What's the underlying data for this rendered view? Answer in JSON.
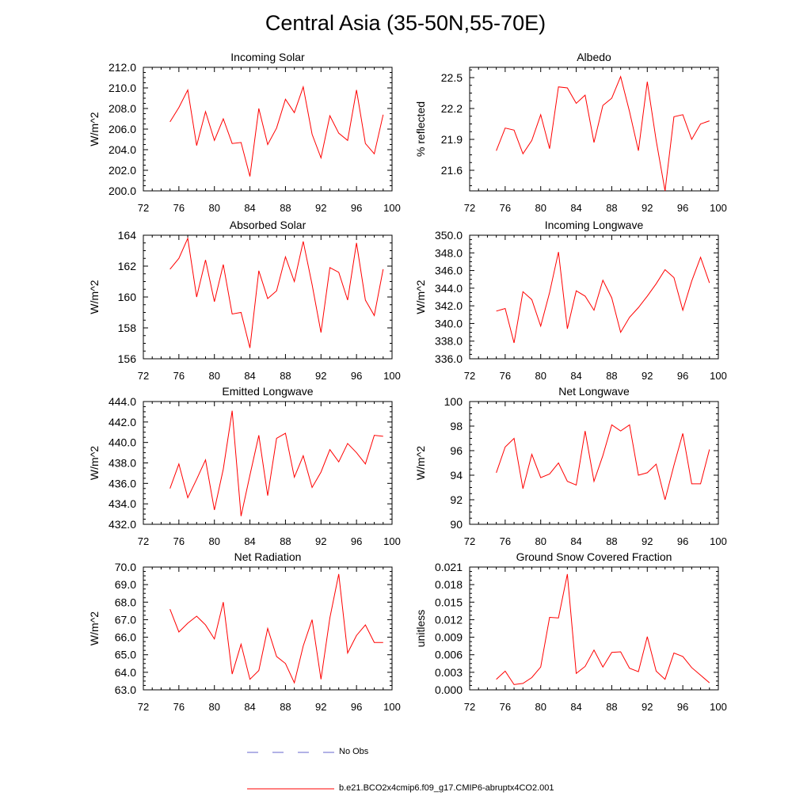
{
  "page": {
    "title": "Central Asia (35-50N,55-70E)"
  },
  "legend": {
    "obs": {
      "label": "No Obs",
      "color": "#6666cc"
    },
    "model": {
      "label": "b.e21.BCO2x4cmip6.f09_g17.CMIP6-abruptx4CO2.001",
      "color": "#ff0000"
    }
  },
  "chart_data": [
    {
      "type": "line",
      "title": "Incoming Solar",
      "ylabel": "W/m^2",
      "xlim": [
        72,
        100
      ],
      "xticks": [
        72,
        76,
        80,
        84,
        88,
        92,
        96,
        100
      ],
      "xtick_labels": [
        "72",
        "76",
        "80",
        "84",
        "88",
        "92",
        "96",
        "100"
      ],
      "ylim": [
        200,
        212
      ],
      "yticks": [
        200,
        202,
        204,
        206,
        208,
        210,
        212
      ],
      "ytick_labels": [
        "200.0",
        "202.0",
        "204.0",
        "206.0",
        "208.0",
        "210.0",
        "212.0"
      ],
      "series": [
        {
          "color": "#ff0000",
          "x": [
            75,
            76,
            77,
            78,
            79,
            80,
            81,
            82,
            83,
            84,
            85,
            86,
            87,
            88,
            89,
            90,
            91,
            92,
            93,
            94,
            95,
            96,
            97,
            98,
            99
          ],
          "y": [
            206.7,
            208.1,
            209.8,
            204.4,
            207.7,
            204.9,
            207.0,
            204.6,
            204.7,
            201.4,
            208.0,
            204.5,
            206.1,
            208.9,
            207.6,
            210.1,
            205.5,
            203.2,
            207.3,
            205.6,
            204.9,
            209.8,
            204.6,
            203.6,
            207.4
          ]
        }
      ]
    },
    {
      "type": "line",
      "title": "Albedo",
      "ylabel": "% reflected",
      "xlim": [
        72,
        100
      ],
      "xticks": [
        72,
        76,
        80,
        84,
        88,
        92,
        96,
        100
      ],
      "xtick_labels": [
        "72",
        "76",
        "80",
        "84",
        "88",
        "92",
        "96",
        "100"
      ],
      "ylim": [
        21.4,
        22.6
      ],
      "yticks": [
        21.6,
        21.9,
        22.2,
        22.5
      ],
      "ytick_labels": [
        "21.6",
        "21.9",
        "22.2",
        "22.5"
      ],
      "series": [
        {
          "color": "#ff0000",
          "x": [
            75,
            76,
            77,
            78,
            79,
            80,
            81,
            82,
            83,
            84,
            85,
            86,
            87,
            88,
            89,
            90,
            91,
            92,
            93,
            94,
            95,
            96,
            97,
            98,
            99
          ],
          "y": [
            21.79,
            22.01,
            21.99,
            21.76,
            21.89,
            22.14,
            21.81,
            22.41,
            22.4,
            22.25,
            22.33,
            21.87,
            22.23,
            22.3,
            22.51,
            22.17,
            21.79,
            22.46,
            21.89,
            21.4,
            22.12,
            22.14,
            21.9,
            22.05,
            22.08
          ]
        }
      ]
    },
    {
      "type": "line",
      "title": "Absorbed Solar",
      "ylabel": "W/m^2",
      "xlim": [
        72,
        100
      ],
      "xticks": [
        72,
        76,
        80,
        84,
        88,
        92,
        96,
        100
      ],
      "xtick_labels": [
        "72",
        "76",
        "80",
        "84",
        "88",
        "92",
        "96",
        "100"
      ],
      "ylim": [
        156,
        164
      ],
      "yticks": [
        156,
        158,
        160,
        162,
        164
      ],
      "ytick_labels": [
        "156",
        "158",
        "160",
        "162",
        "164"
      ],
      "series": [
        {
          "color": "#ff0000",
          "x": [
            75,
            76,
            77,
            78,
            79,
            80,
            81,
            82,
            83,
            84,
            85,
            86,
            87,
            88,
            89,
            90,
            91,
            92,
            93,
            94,
            95,
            96,
            97,
            98,
            99
          ],
          "y": [
            161.8,
            162.5,
            163.8,
            160.0,
            162.4,
            159.7,
            162.1,
            158.9,
            159.0,
            156.7,
            161.7,
            159.9,
            160.4,
            162.6,
            161.0,
            163.6,
            160.8,
            157.7,
            161.9,
            161.6,
            159.8,
            163.5,
            159.8,
            158.8,
            161.8
          ]
        }
      ]
    },
    {
      "type": "line",
      "title": "Incoming Longwave",
      "ylabel": "W/m^2",
      "xlim": [
        72,
        100
      ],
      "xticks": [
        72,
        76,
        80,
        84,
        88,
        92,
        96,
        100
      ],
      "xtick_labels": [
        "72",
        "76",
        "80",
        "84",
        "88",
        "92",
        "96",
        "100"
      ],
      "ylim": [
        336,
        350
      ],
      "yticks": [
        336,
        338,
        340,
        342,
        344,
        346,
        348,
        350
      ],
      "ytick_labels": [
        "336.0",
        "338.0",
        "340.0",
        "342.0",
        "344.0",
        "346.0",
        "348.0",
        "350.0"
      ],
      "series": [
        {
          "color": "#ff0000",
          "x": [
            75,
            76,
            77,
            78,
            79,
            80,
            81,
            82,
            83,
            84,
            85,
            86,
            87,
            88,
            89,
            90,
            91,
            92,
            93,
            94,
            95,
            96,
            97,
            98,
            99
          ],
          "y": [
            341.4,
            341.7,
            337.8,
            343.6,
            342.7,
            339.7,
            343.5,
            348.1,
            339.4,
            343.7,
            343.1,
            341.5,
            344.9,
            342.9,
            339.0,
            340.7,
            341.8,
            343.1,
            344.5,
            346.1,
            345.2,
            341.5,
            344.8,
            347.5,
            344.6
          ]
        }
      ]
    },
    {
      "type": "line",
      "title": "Emitted Longwave",
      "ylabel": "W/m^2",
      "xlim": [
        72,
        100
      ],
      "xticks": [
        72,
        76,
        80,
        84,
        88,
        92,
        96,
        100
      ],
      "xtick_labels": [
        "72",
        "76",
        "80",
        "84",
        "88",
        "92",
        "96",
        "100"
      ],
      "ylim": [
        432,
        444
      ],
      "yticks": [
        432,
        434,
        436,
        438,
        440,
        442,
        444
      ],
      "ytick_labels": [
        "432.0",
        "434.0",
        "436.0",
        "438.0",
        "440.0",
        "442.0",
        "444.0"
      ],
      "series": [
        {
          "color": "#ff0000",
          "x": [
            75,
            76,
            77,
            78,
            79,
            80,
            81,
            82,
            83,
            84,
            85,
            86,
            87,
            88,
            89,
            90,
            91,
            92,
            93,
            94,
            95,
            96,
            97,
            98,
            99
          ],
          "y": [
            435.5,
            437.9,
            434.6,
            436.4,
            438.3,
            433.4,
            437.4,
            443.1,
            432.8,
            436.8,
            440.7,
            434.8,
            440.4,
            440.9,
            436.6,
            438.7,
            435.6,
            437.1,
            439.3,
            438.1,
            439.9,
            439.0,
            437.9,
            440.7,
            440.6
          ]
        }
      ]
    },
    {
      "type": "line",
      "title": "Net Longwave",
      "ylabel": "W/m^2",
      "xlim": [
        72,
        100
      ],
      "xticks": [
        72,
        76,
        80,
        84,
        88,
        92,
        96,
        100
      ],
      "xtick_labels": [
        "72",
        "76",
        "80",
        "84",
        "88",
        "92",
        "96",
        "100"
      ],
      "ylim": [
        90,
        100
      ],
      "yticks": [
        90,
        92,
        94,
        96,
        98,
        100
      ],
      "ytick_labels": [
        "90",
        "92",
        "94",
        "96",
        "98",
        "100"
      ],
      "series": [
        {
          "color": "#ff0000",
          "x": [
            75,
            76,
            77,
            78,
            79,
            80,
            81,
            82,
            83,
            84,
            85,
            86,
            87,
            88,
            89,
            90,
            91,
            92,
            93,
            94,
            95,
            96,
            97,
            98,
            99
          ],
          "y": [
            94.2,
            96.3,
            97.0,
            92.9,
            95.7,
            93.8,
            94.1,
            95.0,
            93.5,
            93.2,
            97.6,
            93.5,
            95.6,
            98.1,
            97.6,
            98.1,
            94.0,
            94.2,
            94.9,
            92.0,
            94.8,
            97.4,
            93.3,
            93.3,
            96.1
          ]
        }
      ]
    },
    {
      "type": "line",
      "title": "Net Radiation",
      "ylabel": "W/m^2",
      "xlim": [
        72,
        100
      ],
      "xticks": [
        72,
        76,
        80,
        84,
        88,
        92,
        96,
        100
      ],
      "xtick_labels": [
        "72",
        "76",
        "80",
        "84",
        "88",
        "92",
        "96",
        "100"
      ],
      "ylim": [
        63,
        70
      ],
      "yticks": [
        63,
        64,
        65,
        66,
        67,
        68,
        69,
        70
      ],
      "ytick_labels": [
        "63.0",
        "64.0",
        "65.0",
        "66.0",
        "67.0",
        "68.0",
        "69.0",
        "70.0"
      ],
      "series": [
        {
          "color": "#ff0000",
          "x": [
            75,
            76,
            77,
            78,
            79,
            80,
            81,
            82,
            83,
            84,
            85,
            86,
            87,
            88,
            89,
            90,
            91,
            92,
            93,
            94,
            95,
            96,
            97,
            98,
            99
          ],
          "y": [
            67.6,
            66.3,
            66.8,
            67.2,
            66.7,
            65.9,
            68.0,
            63.9,
            65.6,
            63.6,
            64.1,
            66.5,
            64.9,
            64.5,
            63.4,
            65.5,
            67.0,
            63.6,
            67.1,
            69.6,
            65.1,
            66.1,
            66.7,
            65.7,
            65.7
          ]
        }
      ]
    },
    {
      "type": "line",
      "title": "Ground Snow Covered Fraction",
      "ylabel": "unitless",
      "xlim": [
        72,
        100
      ],
      "xticks": [
        72,
        76,
        80,
        84,
        88,
        92,
        96,
        100
      ],
      "xtick_labels": [
        "72",
        "76",
        "80",
        "84",
        "88",
        "92",
        "96",
        "100"
      ],
      "ylim": [
        0.0,
        0.021
      ],
      "yticks": [
        0.0,
        0.003,
        0.006,
        0.009,
        0.012,
        0.015,
        0.018,
        0.021
      ],
      "ytick_labels": [
        "0.000",
        "0.003",
        "0.006",
        "0.009",
        "0.012",
        "0.015",
        "0.018",
        "0.021"
      ],
      "series": [
        {
          "color": "#ff0000",
          "x": [
            75,
            76,
            77,
            78,
            79,
            80,
            81,
            82,
            83,
            84,
            85,
            86,
            87,
            88,
            89,
            90,
            91,
            92,
            93,
            94,
            95,
            96,
            97,
            98,
            99
          ],
          "y": [
            0.0018,
            0.0032,
            0.0009,
            0.0011,
            0.0021,
            0.0039,
            0.0124,
            0.0123,
            0.0198,
            0.0028,
            0.004,
            0.0068,
            0.0039,
            0.0064,
            0.0065,
            0.0037,
            0.0031,
            0.0091,
            0.0032,
            0.0018,
            0.0063,
            0.0057,
            0.0038,
            0.0025,
            0.0012
          ]
        }
      ]
    }
  ]
}
